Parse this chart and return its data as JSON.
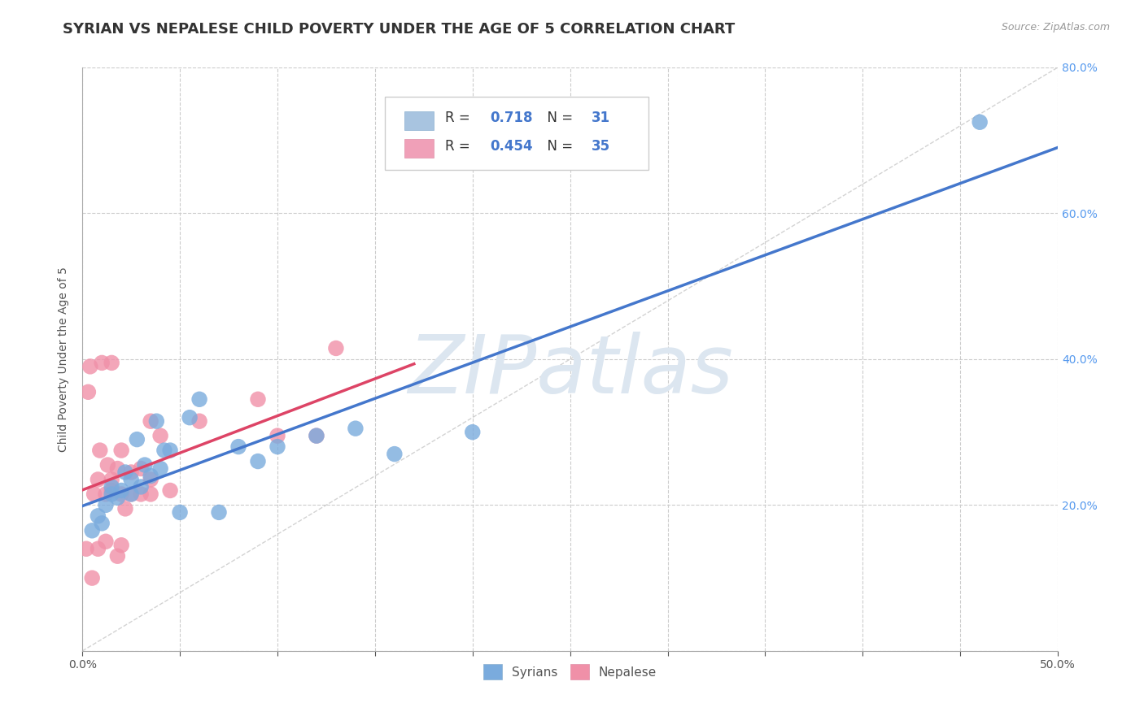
{
  "title": "SYRIAN VS NEPALESE CHILD POVERTY UNDER THE AGE OF 5 CORRELATION CHART",
  "source": "Source: ZipAtlas.com",
  "ylabel": "Child Poverty Under the Age of 5",
  "xlim": [
    0.0,
    0.5
  ],
  "ylim": [
    0.0,
    0.8
  ],
  "xticks": [
    0.0,
    0.05,
    0.1,
    0.15,
    0.2,
    0.25,
    0.3,
    0.35,
    0.4,
    0.45,
    0.5
  ],
  "xtick_labels_show": [
    "0.0%",
    "",
    "",
    "",
    "",
    "",
    "",
    "",
    "",
    "",
    "50.0%"
  ],
  "yticks": [
    0.0,
    0.2,
    0.4,
    0.6,
    0.8
  ],
  "ytick_labels": [
    "",
    "20.0%",
    "40.0%",
    "60.0%",
    "80.0%"
  ],
  "legend_entries": [
    {
      "label_r": "R = ",
      "label_rv": "0.718",
      "label_n": "  N = ",
      "label_nv": "31",
      "color": "#a8c4e0"
    },
    {
      "label_r": "R = ",
      "label_rv": "0.454",
      "label_n": "  N = ",
      "label_nv": "35",
      "color": "#f0a0b8"
    }
  ],
  "syrians_color": "#7aabdd",
  "nepalese_color": "#f090a8",
  "trend_syrian_color": "#4477cc",
  "trend_nepalese_color": "#dd4466",
  "watermark_text": "ZIPatlas",
  "watermark_color": "#dce6f0",
  "background_color": "#ffffff",
  "grid_color": "#cccccc",
  "syrians_x": [
    0.005,
    0.008,
    0.01,
    0.012,
    0.015,
    0.015,
    0.018,
    0.02,
    0.022,
    0.025,
    0.025,
    0.028,
    0.03,
    0.032,
    0.035,
    0.038,
    0.04,
    0.042,
    0.045,
    0.05,
    0.055,
    0.06,
    0.07,
    0.08,
    0.09,
    0.1,
    0.12,
    0.14,
    0.16,
    0.2,
    0.46
  ],
  "syrians_y": [
    0.165,
    0.185,
    0.175,
    0.2,
    0.215,
    0.225,
    0.21,
    0.22,
    0.245,
    0.215,
    0.235,
    0.29,
    0.225,
    0.255,
    0.24,
    0.315,
    0.25,
    0.275,
    0.275,
    0.19,
    0.32,
    0.345,
    0.19,
    0.28,
    0.26,
    0.28,
    0.295,
    0.305,
    0.27,
    0.3,
    0.725
  ],
  "nepalese_x": [
    0.002,
    0.003,
    0.004,
    0.005,
    0.006,
    0.008,
    0.008,
    0.009,
    0.01,
    0.012,
    0.012,
    0.013,
    0.015,
    0.015,
    0.015,
    0.018,
    0.018,
    0.02,
    0.02,
    0.02,
    0.022,
    0.025,
    0.025,
    0.03,
    0.03,
    0.035,
    0.035,
    0.035,
    0.04,
    0.045,
    0.06,
    0.09,
    0.1,
    0.12,
    0.13
  ],
  "nepalese_y": [
    0.14,
    0.355,
    0.39,
    0.1,
    0.215,
    0.14,
    0.235,
    0.275,
    0.395,
    0.15,
    0.215,
    0.255,
    0.22,
    0.235,
    0.395,
    0.13,
    0.25,
    0.145,
    0.215,
    0.275,
    0.195,
    0.215,
    0.245,
    0.215,
    0.25,
    0.215,
    0.235,
    0.315,
    0.295,
    0.22,
    0.315,
    0.345,
    0.295,
    0.295,
    0.415
  ],
  "title_fontsize": 13,
  "axis_label_fontsize": 10,
  "tick_fontsize": 10,
  "legend_fontsize": 12,
  "marker_size": 14
}
